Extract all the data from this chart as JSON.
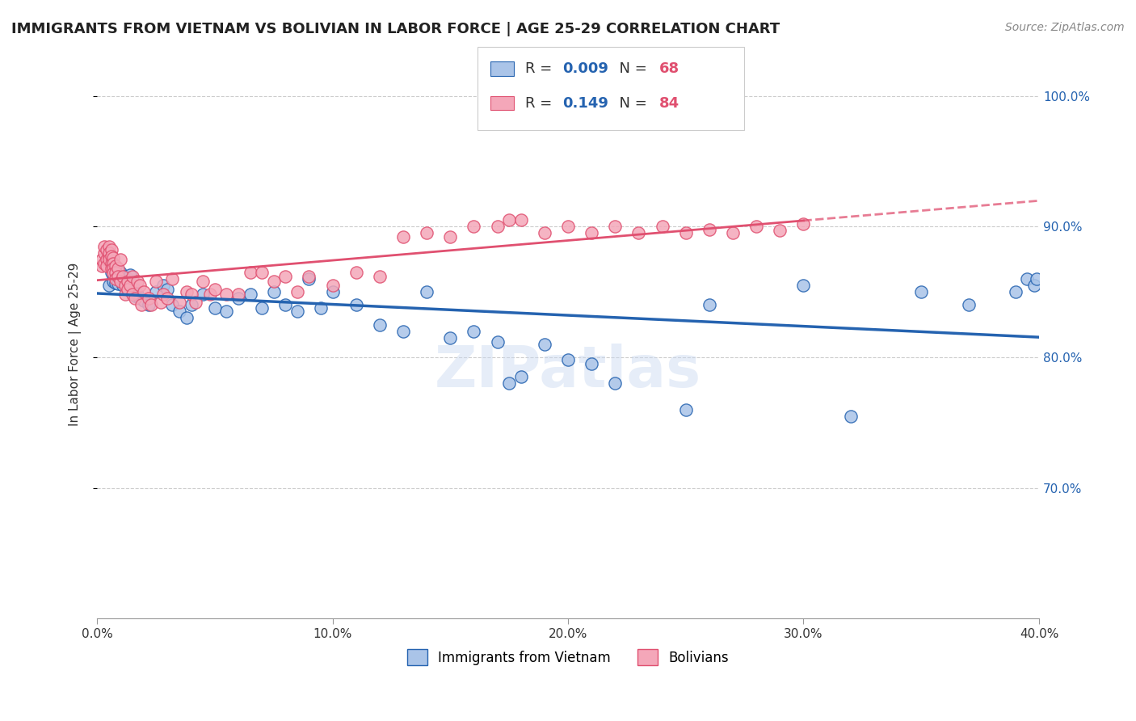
{
  "title": "IMMIGRANTS FROM VIETNAM VS BOLIVIAN IN LABOR FORCE | AGE 25-29 CORRELATION CHART",
  "source": "Source: ZipAtlas.com",
  "ylabel": "In Labor Force | Age 25-29",
  "watermark": "ZIPatlas",
  "legend_blue_r_val": "0.009",
  "legend_blue_n_val": "68",
  "legend_pink_r_val": "0.149",
  "legend_pink_n_val": "84",
  "legend_blue_label": "Immigrants from Vietnam",
  "legend_pink_label": "Bolivians",
  "blue_color": "#aac4e8",
  "pink_color": "#f4a7b9",
  "blue_line_color": "#2563b0",
  "pink_line_color": "#e05070",
  "r_val_color": "#2563b0",
  "n_val_color": "#e05070",
  "xlim": [
    0.0,
    0.4
  ],
  "ylim": [
    0.6,
    1.02
  ],
  "yticks": [
    0.7,
    0.8,
    0.9,
    1.0
  ],
  "xticks": [
    0.0,
    0.1,
    0.2,
    0.3,
    0.4
  ],
  "blue_x": [
    0.005,
    0.005,
    0.006,
    0.007,
    0.007,
    0.008,
    0.008,
    0.009,
    0.009,
    0.01,
    0.01,
    0.011,
    0.011,
    0.012,
    0.012,
    0.013,
    0.013,
    0.014,
    0.015,
    0.015,
    0.016,
    0.016,
    0.017,
    0.018,
    0.02,
    0.022,
    0.025,
    0.028,
    0.03,
    0.032,
    0.035,
    0.038,
    0.04,
    0.045,
    0.05,
    0.055,
    0.06,
    0.065,
    0.07,
    0.075,
    0.08,
    0.085,
    0.09,
    0.095,
    0.1,
    0.11,
    0.12,
    0.13,
    0.14,
    0.15,
    0.16,
    0.17,
    0.175,
    0.18,
    0.19,
    0.2,
    0.21,
    0.22,
    0.25,
    0.26,
    0.3,
    0.32,
    0.35,
    0.37,
    0.39,
    0.395,
    0.398,
    0.399
  ],
  "blue_y": [
    0.87,
    0.855,
    0.865,
    0.86,
    0.858,
    0.863,
    0.857,
    0.862,
    0.856,
    0.865,
    0.86,
    0.858,
    0.855,
    0.862,
    0.857,
    0.86,
    0.855,
    0.863,
    0.85,
    0.848,
    0.852,
    0.847,
    0.848,
    0.845,
    0.843,
    0.84,
    0.85,
    0.855,
    0.852,
    0.84,
    0.835,
    0.83,
    0.84,
    0.848,
    0.838,
    0.835,
    0.845,
    0.848,
    0.838,
    0.85,
    0.84,
    0.835,
    0.86,
    0.838,
    0.85,
    0.84,
    0.825,
    0.82,
    0.85,
    0.815,
    0.82,
    0.812,
    0.78,
    0.785,
    0.81,
    0.798,
    0.795,
    0.78,
    0.76,
    0.84,
    0.855,
    0.755,
    0.85,
    0.84,
    0.85,
    0.86,
    0.855,
    0.86
  ],
  "pink_x": [
    0.002,
    0.002,
    0.003,
    0.003,
    0.003,
    0.004,
    0.004,
    0.004,
    0.005,
    0.005,
    0.005,
    0.005,
    0.006,
    0.006,
    0.006,
    0.006,
    0.007,
    0.007,
    0.007,
    0.007,
    0.008,
    0.008,
    0.008,
    0.009,
    0.009,
    0.01,
    0.01,
    0.011,
    0.012,
    0.012,
    0.013,
    0.013,
    0.014,
    0.015,
    0.015,
    0.016,
    0.017,
    0.018,
    0.019,
    0.02,
    0.022,
    0.023,
    0.025,
    0.027,
    0.028,
    0.03,
    0.032,
    0.035,
    0.038,
    0.04,
    0.042,
    0.045,
    0.048,
    0.05,
    0.055,
    0.06,
    0.065,
    0.07,
    0.075,
    0.08,
    0.085,
    0.09,
    0.1,
    0.11,
    0.12,
    0.13,
    0.14,
    0.15,
    0.16,
    0.17,
    0.175,
    0.18,
    0.19,
    0.2,
    0.21,
    0.22,
    0.23,
    0.24,
    0.25,
    0.26,
    0.27,
    0.28,
    0.29,
    0.3
  ],
  "pink_y": [
    0.87,
    0.875,
    0.88,
    0.872,
    0.885,
    0.875,
    0.882,
    0.87,
    0.878,
    0.885,
    0.88,
    0.875,
    0.882,
    0.877,
    0.872,
    0.868,
    0.876,
    0.872,
    0.868,
    0.864,
    0.87,
    0.865,
    0.86,
    0.868,
    0.862,
    0.875,
    0.858,
    0.862,
    0.855,
    0.848,
    0.858,
    0.852,
    0.855,
    0.848,
    0.862,
    0.845,
    0.858,
    0.855,
    0.84,
    0.85,
    0.845,
    0.84,
    0.858,
    0.842,
    0.848,
    0.845,
    0.86,
    0.842,
    0.85,
    0.848,
    0.842,
    0.858,
    0.848,
    0.852,
    0.848,
    0.848,
    0.865,
    0.865,
    0.858,
    0.862,
    0.85,
    0.862,
    0.855,
    0.865,
    0.862,
    0.892,
    0.895,
    0.892,
    0.9,
    0.9,
    0.905,
    0.905,
    0.895,
    0.9,
    0.895,
    0.9,
    0.895,
    0.9,
    0.895,
    0.898,
    0.895,
    0.9,
    0.897,
    0.902
  ]
}
